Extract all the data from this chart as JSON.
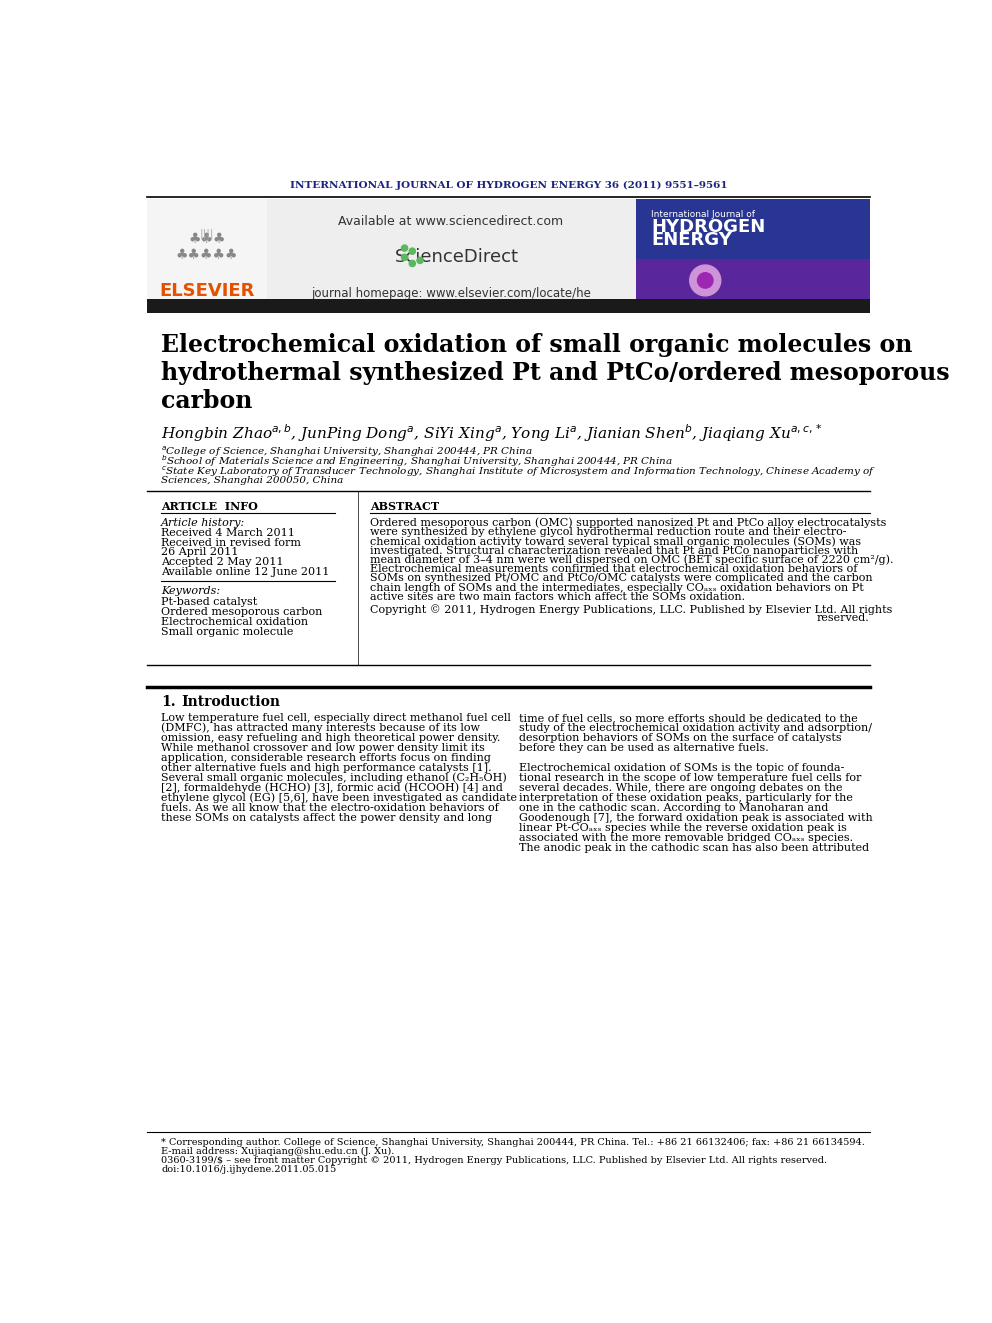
{
  "bg_color": "#ffffff",
  "header_journal": "INTERNATIONAL JOURNAL OF HYDROGEN ENERGY 36 (2011) 9551–9561",
  "header_color": "#1a237e",
  "elsevier_color": "#e65100",
  "title_bar_color": "#1a1a1a",
  "paper_title_line1": "Electrochemical oxidation of small organic molecules on",
  "paper_title_line2": "hydrothermal synthesized Pt and PtCo/ordered mesoporous",
  "paper_title_line3": "carbon",
  "article_info_title": "ARTICLE  INFO",
  "article_history_title": "Article history:",
  "received1": "Received 4 March 2011",
  "received2": "Received in revised form",
  "received2b": "26 April 2011",
  "accepted": "Accepted 2 May 2011",
  "available": "Available online 12 June 2011",
  "keywords_title": "Keywords:",
  "kw1": "Pt-based catalyst",
  "kw2": "Ordered mesoporous carbon",
  "kw3": "Electrochemical oxidation",
  "kw4": "Small organic molecule",
  "abstract_title": "ABSTRACT",
  "abstract_lines": [
    "Ordered mesoporous carbon (OMC) supported nanosized Pt and PtCo alloy electrocatalysts",
    "were synthesized by ethylene glycol hydrothermal reduction route and their electro-",
    "chemical oxidation activity toward several typical small organic molecules (SOMs) was",
    "investigated. Structural characterization revealed that Pt and PtCo nanoparticles with",
    "mean diameter of 3–4 nm were well dispersed on OMC (BET specific surface of 2220 cm²/g).",
    "Electrochemical measurements confirmed that electrochemical oxidation behaviors of",
    "SOMs on synthesized Pt/OMC and PtCo/OMC catalysts were complicated and the carbon",
    "chain length of SOMs and the intermediates, especially COₐₓₛ oxidation behaviors on Pt",
    "active sites are two main factors which affect the SOMs oxidation."
  ],
  "copyright_line1": "Copyright © 2011, Hydrogen Energy Publications, LLC. Published by Elsevier Ltd. All rights",
  "copyright_line2": "reserved.",
  "intro_col1_lines": [
    "Low temperature fuel cell, especially direct methanol fuel cell",
    "(DMFC), has attracted many interests because of its low",
    "omission, easy refueling and high theoretical power density.",
    "While methanol crossover and low power density limit its",
    "application, considerable research efforts focus on finding",
    "other alternative fuels and high performance catalysts [1].",
    "Several small organic molecules, including ethanol (C₂H₅OH)",
    "[2], formaldehyde (HCHO) [3], formic acid (HCOOH) [4] and",
    "ethylene glycol (EG) [5,6], have been investigated as candidate",
    "fuels. As we all know that the electro-oxidation behaviors of",
    "these SOMs on catalysts affect the power density and long"
  ],
  "intro_col2_lines": [
    "time of fuel cells, so more efforts should be dedicated to the",
    "study of the electrochemical oxidation activity and adsorption/",
    "desorption behaviors of SOMs on the surface of catalysts",
    "before they can be used as alternative fuels.",
    "",
    "Electrochemical oxidation of SOMs is the topic of founda-",
    "tional research in the scope of low temperature fuel cells for",
    "several decades. While, there are ongoing debates on the",
    "interpretation of these oxidation peaks, particularly for the",
    "one in the cathodic scan. According to Manoharan and",
    "Goodenough [7], the forward oxidation peak is associated with",
    "linear Pt-COₐₓₛ species while the reverse oxidation peak is",
    "associated with the more removable bridged COₐₓₛ species.",
    "The anodic peak in the cathodic scan has also been attributed"
  ],
  "footnote_corresponding": "* Corresponding author. College of Science, Shanghai University, Shanghai 200444, PR China. Tel.: +86 21 66132406; fax: +86 21 66134594.",
  "footnote_email": "E-mail address: Xujiaqiang@shu.edu.cn (J. Xu).",
  "footnote_price": "0360-3199/$ – see front matter Copyright © 2011, Hydrogen Energy Publications, LLC. Published by Elsevier Ltd. All rights reserved.",
  "footnote_doi": "doi:10.1016/j.ijhydene.2011.05.015",
  "journal_homepage": "journal homepage: www.elsevier.com/locate/he",
  "available_text": "Available at www.sciencedirect.com"
}
